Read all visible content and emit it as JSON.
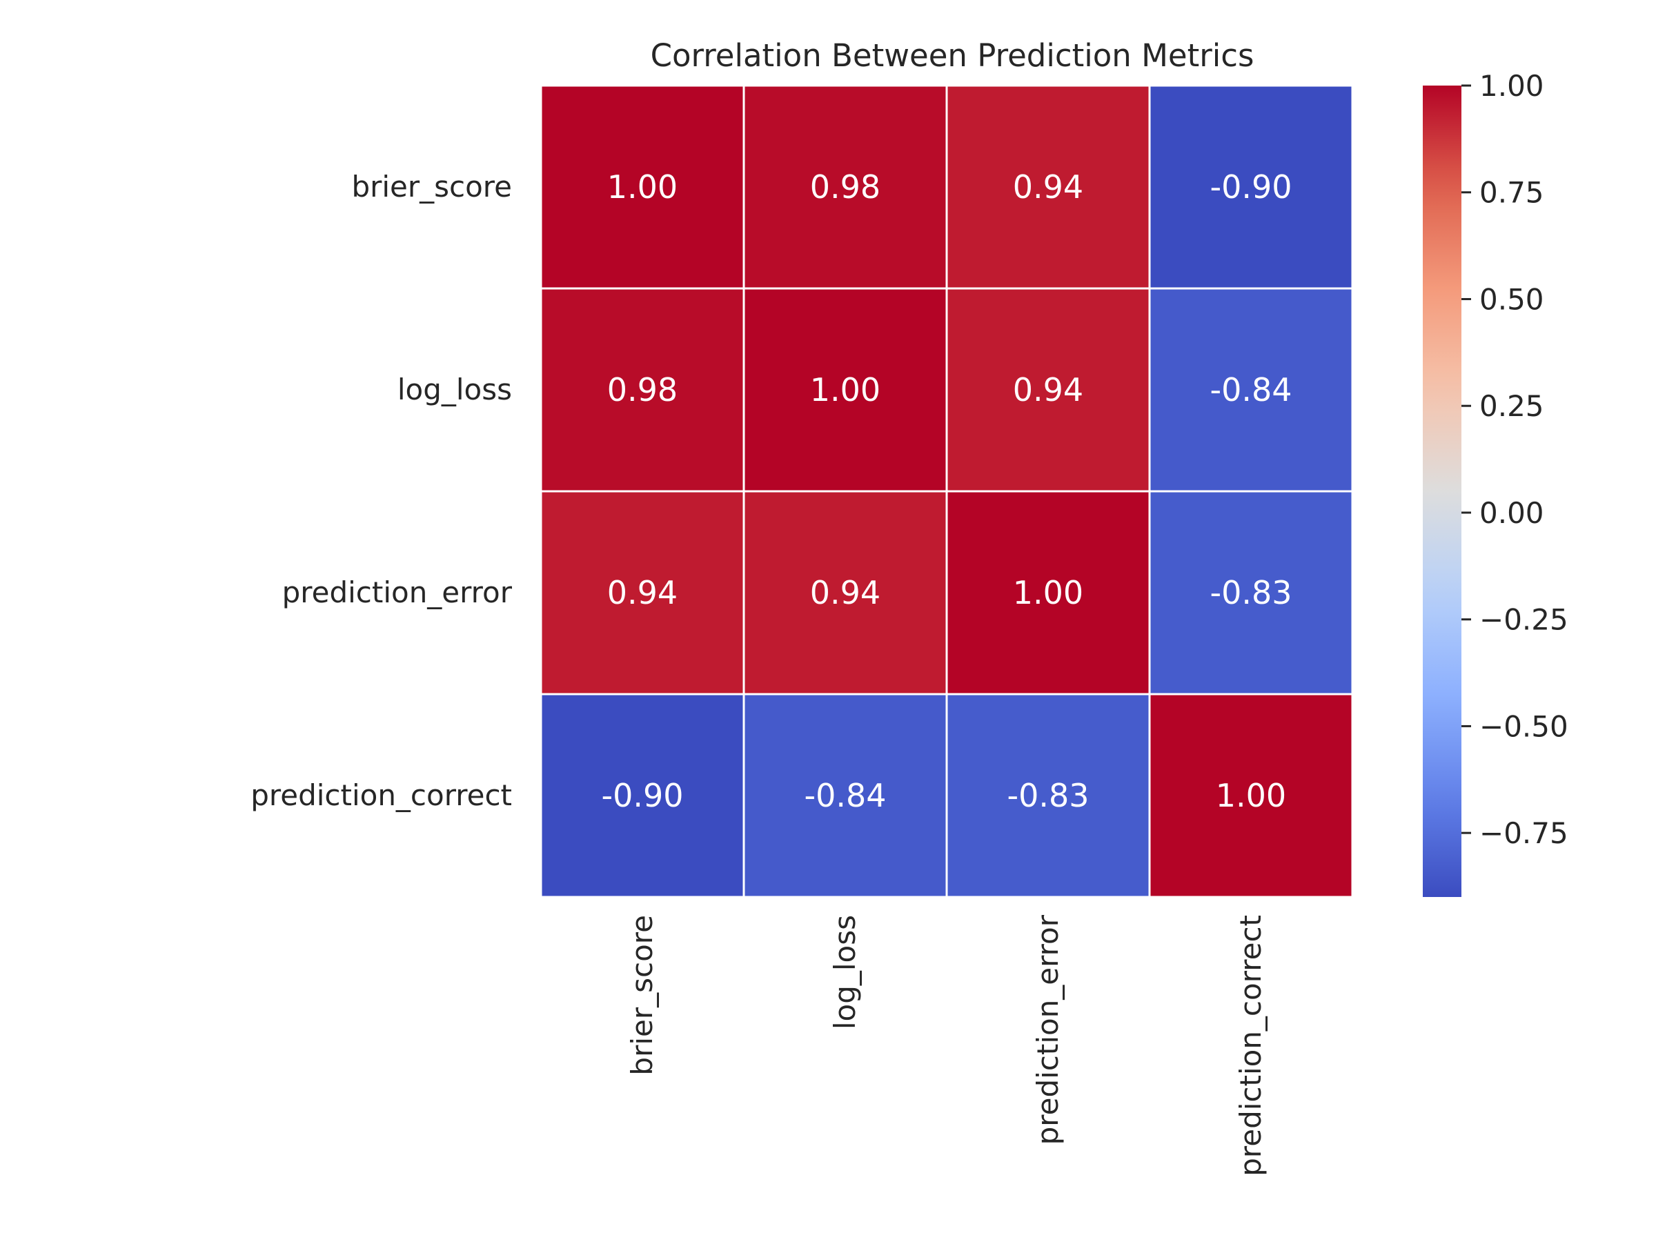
{
  "chart_data": {
    "type": "heatmap",
    "title": "Correlation Between Prediction Metrics",
    "xlabel": "",
    "ylabel": "",
    "row_labels": [
      "brier_score",
      "log_loss",
      "prediction_error",
      "prediction_correct"
    ],
    "col_labels": [
      "brier_score",
      "log_loss",
      "prediction_error",
      "prediction_correct"
    ],
    "values": [
      [
        1.0,
        0.98,
        0.94,
        -0.9
      ],
      [
        0.98,
        1.0,
        0.94,
        -0.84
      ],
      [
        0.94,
        0.94,
        1.0,
        -0.83
      ],
      [
        -0.9,
        -0.84,
        -0.83,
        1.0
      ]
    ],
    "value_format": "2 decimals",
    "colormap": "coolwarm",
    "color_range": [
      -0.9,
      1.0
    ],
    "colorbar": {
      "ticks": [
        1.0,
        0.75,
        0.5,
        0.25,
        0.0,
        -0.25,
        -0.5,
        -0.75
      ],
      "tick_labels": [
        "1.00",
        "0.75",
        "0.50",
        "0.25",
        "0.00",
        "−0.25",
        "−0.50",
        "−0.75"
      ],
      "placement": "right"
    },
    "grid": false
  }
}
